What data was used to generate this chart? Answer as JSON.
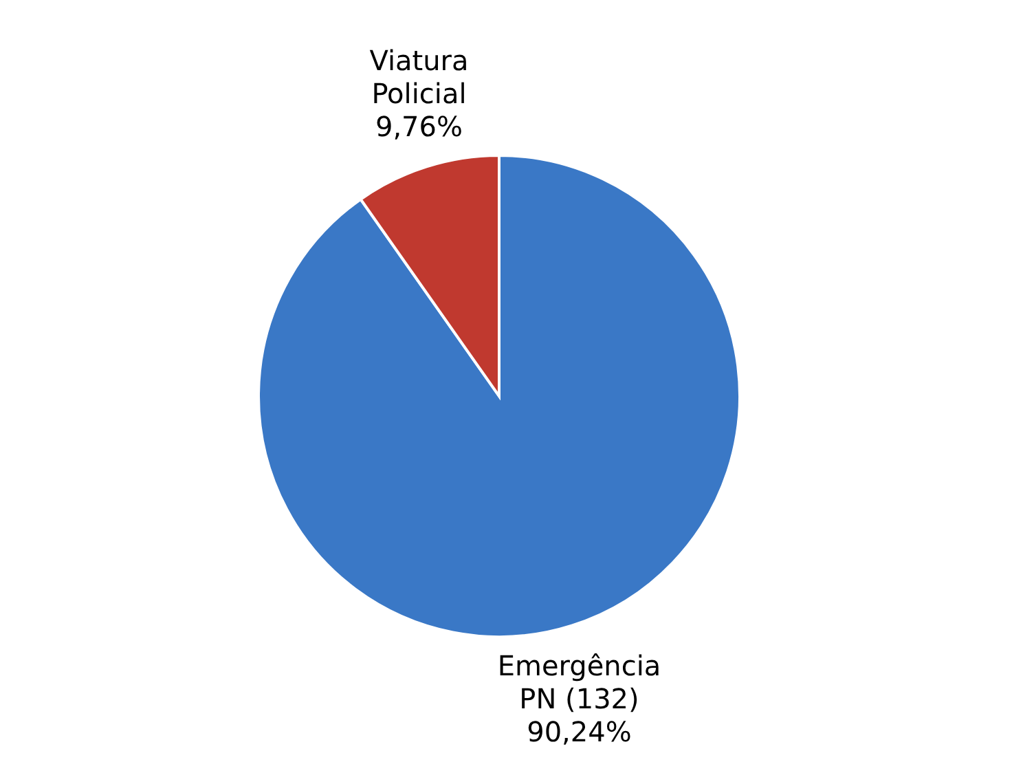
{
  "chart_data": {
    "type": "pie",
    "categories": [
      "Emergência PN (132)",
      "Viatura Policial"
    ],
    "values": [
      90.24,
      9.76
    ],
    "colors": [
      "#3a78c6",
      "#c0392f"
    ],
    "value_labels": [
      "90,24%",
      "9,76%"
    ]
  }
}
